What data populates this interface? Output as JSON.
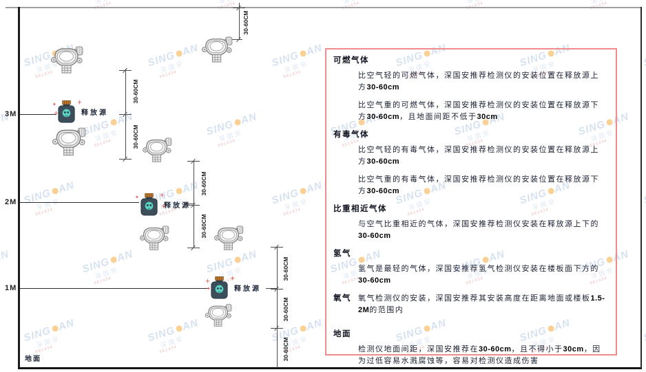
{
  "watermark": {
    "brand_left": "SING",
    "brand_right": "AN",
    "cn": "深国安",
    "code": "661434"
  },
  "diagram": {
    "height_labels": [
      "3M",
      "2M",
      "1M"
    ],
    "ground_label": "地面",
    "release_source_label": "释放源",
    "dim_label": "30-60CM"
  },
  "panel": {
    "border_color": "#f08b8b",
    "sections": [
      {
        "heading": "可燃气体",
        "inline": false,
        "gap": false,
        "paras": [
          "比空气轻的可燃气体，深国安推荐检测仪的安装位置在释放源上方30-60cm",
          "比空气重的可燃气体，深国安推荐检测仪的安装位置在释放源下方30-60cm，且地面间距不低于30cm"
        ]
      },
      {
        "heading": "有毒气体",
        "inline": false,
        "gap": false,
        "paras": [
          "比空气轻的有毒气体，深国安推荐检测仪的安装位置在释放源上方30-60cm",
          "比空气重的有毒气体，深国安推荐检测仪的安装位置在释放源下方30-60cm"
        ]
      },
      {
        "heading": "比重相近气体",
        "inline": false,
        "gap": false,
        "paras": [
          "与空气比重相近的气体，深国安推荐检测仪安装在释放源上下的30-60cm"
        ]
      },
      {
        "heading": "氢气",
        "inline": false,
        "gap": false,
        "paras": [
          "氢气是最轻的气体，深国安推荐氢气检测仪安装在楼板面下方的30-60cm"
        ]
      },
      {
        "heading": "氧气",
        "inline": true,
        "gap": false,
        "paras": [
          "氧气检测仪的安装，深国安推荐其安装高度在距离地面或楼板1.5-2M的范围内"
        ]
      },
      {
        "heading": "地面",
        "inline": false,
        "gap": true,
        "paras": [
          "检测仪地面间距，深国安推荐在30-60cm，且不得小于30cm，因为过低容易水溅腐蚀等，容易对检测仪造成伤害"
        ]
      }
    ]
  }
}
